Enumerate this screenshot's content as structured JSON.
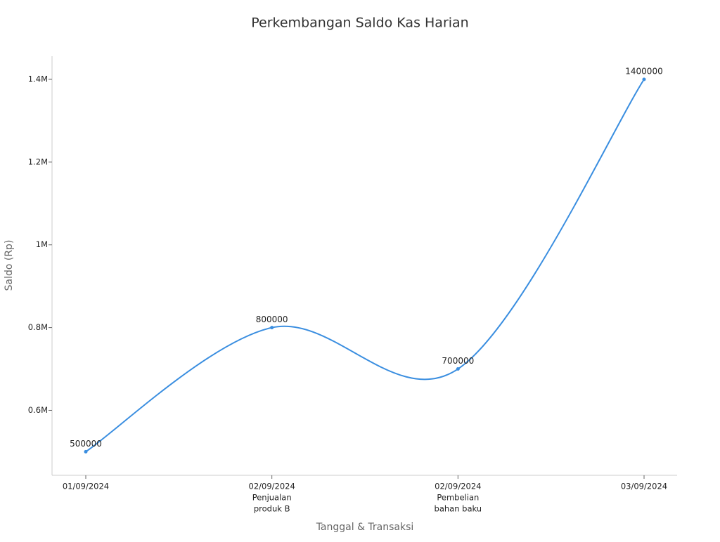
{
  "chart_data": {
    "type": "line",
    "title": "Perkembangan Saldo Kas Harian",
    "x_label": "Tanggal & Transaksi",
    "y_label": "Saldo (Rp)",
    "categories": [
      [
        "01/09/2024"
      ],
      [
        "02/09/2024",
        "Penjualan",
        "produk B"
      ],
      [
        "02/09/2024",
        "Pembelian",
        "bahan baku"
      ],
      [
        "03/09/2024"
      ]
    ],
    "series": [
      {
        "name": "Saldo",
        "color": "#3a8ee0",
        "values": [
          500000,
          800000,
          700000,
          1400000
        ]
      }
    ],
    "ylim": [
      443000,
      1456000
    ],
    "yticks": [
      {
        "value": 600000,
        "label": "0.6M"
      },
      {
        "value": 800000,
        "label": "0.8M"
      },
      {
        "value": 1000000,
        "label": "1M"
      },
      {
        "value": 1200000,
        "label": "1.2M"
      },
      {
        "value": 1400000,
        "label": "1.4M"
      }
    ],
    "smooth": true
  }
}
